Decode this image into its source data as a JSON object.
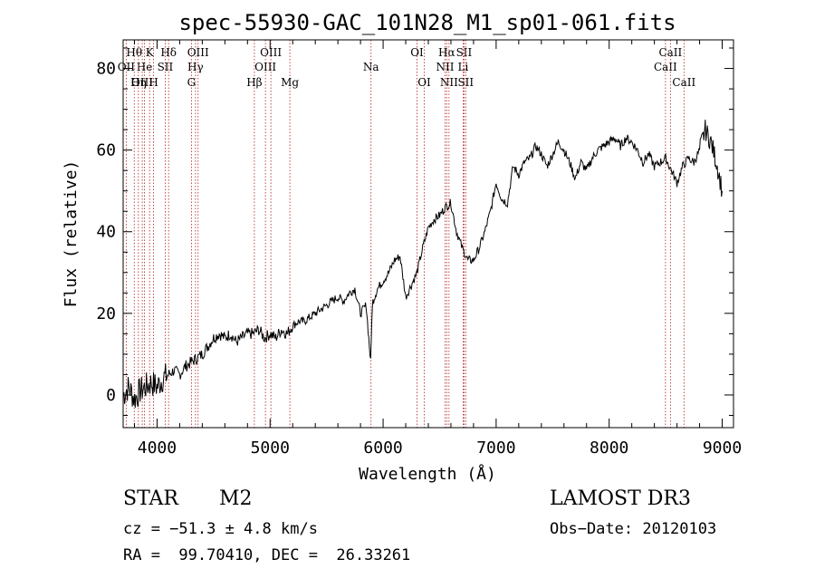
{
  "chart_data": {
    "type": "line",
    "title": "spec-55930-GAC_101N28_M1_sp01-061.fits",
    "xlabel": "Wavelength (Å)",
    "ylabel": "Flux (relative)",
    "xlim": [
      3700,
      9100
    ],
    "ylim": [
      -8,
      87
    ],
    "xticks": [
      4000,
      5000,
      6000,
      7000,
      8000,
      9000
    ],
    "yticks": [
      0,
      20,
      40,
      60,
      80
    ],
    "series": [
      {
        "name": "flux",
        "x": [
          3700,
          3750,
          3800,
          3850,
          3900,
          3950,
          4000,
          4050,
          4100,
          4150,
          4200,
          4250,
          4300,
          4350,
          4400,
          4450,
          4500,
          4550,
          4600,
          4650,
          4700,
          4750,
          4800,
          4850,
          4900,
          4950,
          5000,
          5050,
          5100,
          5150,
          5200,
          5250,
          5300,
          5350,
          5400,
          5450,
          5500,
          5550,
          5600,
          5650,
          5700,
          5750,
          5800,
          5850,
          5890,
          5900,
          5910,
          5950,
          6000,
          6050,
          6100,
          6150,
          6200,
          6250,
          6300,
          6350,
          6400,
          6450,
          6500,
          6550,
          6600,
          6650,
          6700,
          6750,
          6800,
          6850,
          6900,
          6950,
          7000,
          7050,
          7100,
          7150,
          7200,
          7250,
          7300,
          7350,
          7400,
          7450,
          7500,
          7550,
          7600,
          7650,
          7700,
          7750,
          7800,
          7850,
          7900,
          7950,
          8000,
          8050,
          8100,
          8150,
          8200,
          8250,
          8300,
          8350,
          8400,
          8450,
          8500,
          8550,
          8600,
          8650,
          8700,
          8750,
          8800,
          8850,
          8900,
          8950,
          9000
        ],
        "y": [
          0,
          2,
          -1,
          1,
          2,
          3,
          2,
          4,
          5,
          6,
          5,
          7,
          8,
          9,
          10,
          12,
          14,
          15,
          14,
          15,
          13,
          14,
          15,
          15,
          16,
          14,
          15,
          14,
          16,
          15,
          17,
          18,
          18,
          19,
          20,
          21,
          22,
          23,
          24,
          23,
          25,
          26,
          20,
          22,
          8,
          19,
          23,
          26,
          28,
          30,
          33,
          34,
          24,
          27,
          30,
          36,
          41,
          43,
          44,
          46,
          47,
          40,
          36,
          33,
          33,
          36,
          40,
          45,
          52,
          48,
          47,
          56,
          54,
          57,
          58,
          61,
          59,
          56,
          59,
          62,
          60,
          57,
          53,
          57,
          55,
          58,
          60,
          61,
          62,
          63,
          61,
          63,
          62,
          60,
          57,
          59,
          56,
          57,
          58,
          55,
          52,
          56,
          58,
          57,
          60,
          65,
          62,
          57,
          50
        ]
      }
    ],
    "spectral_lines": [
      {
        "label": "Hθ",
        "wavelength": 3798,
        "row": 1
      },
      {
        "label": "OII",
        "wavelength": 3727,
        "row": 2
      },
      {
        "label": "OIII",
        "wavelength": 3869,
        "row": 3
      },
      {
        "label": "He",
        "wavelength": 3889,
        "row": 2
      },
      {
        "label": "Hη",
        "wavelength": 3835,
        "row": 3
      },
      {
        "label": "K",
        "wavelength": 3934,
        "row": 1
      },
      {
        "label": "H",
        "wavelength": 3969,
        "row": 3
      },
      {
        "label": "SII",
        "wavelength": 4072,
        "row": 2
      },
      {
        "label": "Hδ",
        "wavelength": 4102,
        "row": 1
      },
      {
        "label": "G",
        "wavelength": 4304,
        "row": 3
      },
      {
        "label": "Hγ",
        "wavelength": 4340,
        "row": 2
      },
      {
        "label": "OIII",
        "wavelength": 4363,
        "row": 1
      },
      {
        "label": "Hβ",
        "wavelength": 4861,
        "row": 3
      },
      {
        "label": "OIII",
        "wavelength": 4959,
        "row": 2
      },
      {
        "label": "OIII",
        "wavelength": 5007,
        "row": 1
      },
      {
        "label": "Mg",
        "wavelength": 5175,
        "row": 3
      },
      {
        "label": "Na",
        "wavelength": 5893,
        "row": 2
      },
      {
        "label": "OI",
        "wavelength": 6300,
        "row": 1
      },
      {
        "label": "OI",
        "wavelength": 6364,
        "row": 3
      },
      {
        "label": "NII",
        "wavelength": 6548,
        "row": 2
      },
      {
        "label": "Hα",
        "wavelength": 6563,
        "row": 1
      },
      {
        "label": "NII",
        "wavelength": 6583,
        "row": 3
      },
      {
        "label": "Li",
        "wavelength": 6708,
        "row": 2
      },
      {
        "label": "SII",
        "wavelength": 6716,
        "row": 1
      },
      {
        "label": "SII",
        "wavelength": 6731,
        "row": 3
      },
      {
        "label": "CaII",
        "wavelength": 8498,
        "row": 2
      },
      {
        "label": "CaII",
        "wavelength": 8542,
        "row": 1
      },
      {
        "label": "CaII",
        "wavelength": 8662,
        "row": 3
      }
    ]
  },
  "info": {
    "object_class": "STAR",
    "subclass": "M2",
    "survey": "LAMOST DR3",
    "cz": "cz = −51.3 ± 4.8 km/s",
    "obs_date": "Obs−Date: 20120103",
    "coords": "RA =  99.70410, DEC =  26.33261"
  }
}
